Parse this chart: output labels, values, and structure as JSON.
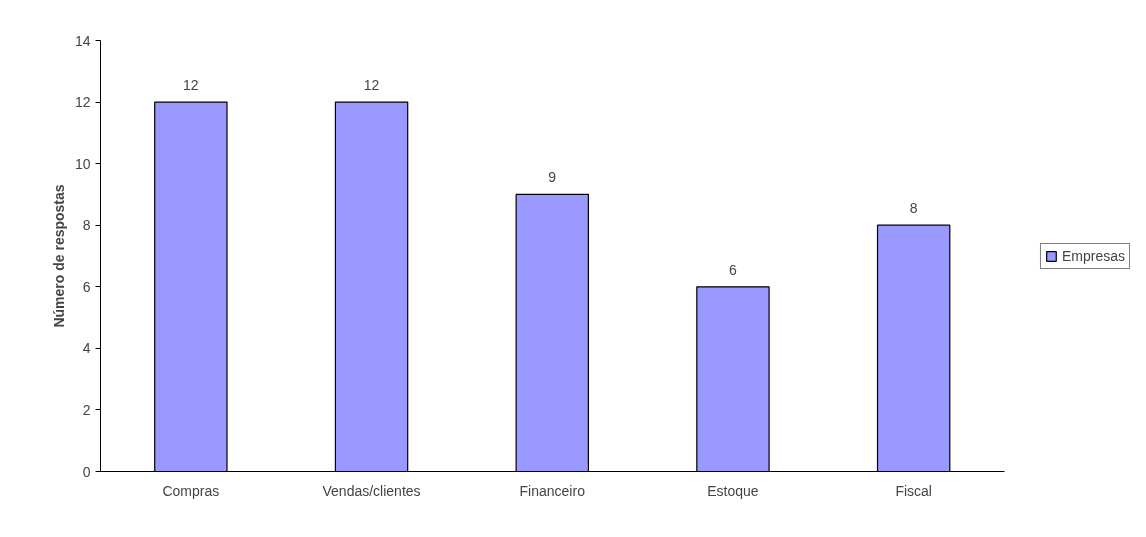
{
  "chart_data": {
    "type": "bar",
    "ylabel": "Número de respostas",
    "categories": [
      "Compras",
      "Vendas/clientes",
      "Financeiro",
      "Estoque",
      "Fiscal"
    ],
    "series": [
      {
        "name": "Empresas",
        "color": "#9999ff",
        "values": [
          12,
          12,
          9,
          6,
          8
        ]
      }
    ],
    "ylim": [
      0,
      14
    ],
    "yticks": [
      0,
      2,
      4,
      6,
      8,
      10,
      12,
      14
    ],
    "grid": false,
    "legend": "right",
    "data_labels": true
  }
}
